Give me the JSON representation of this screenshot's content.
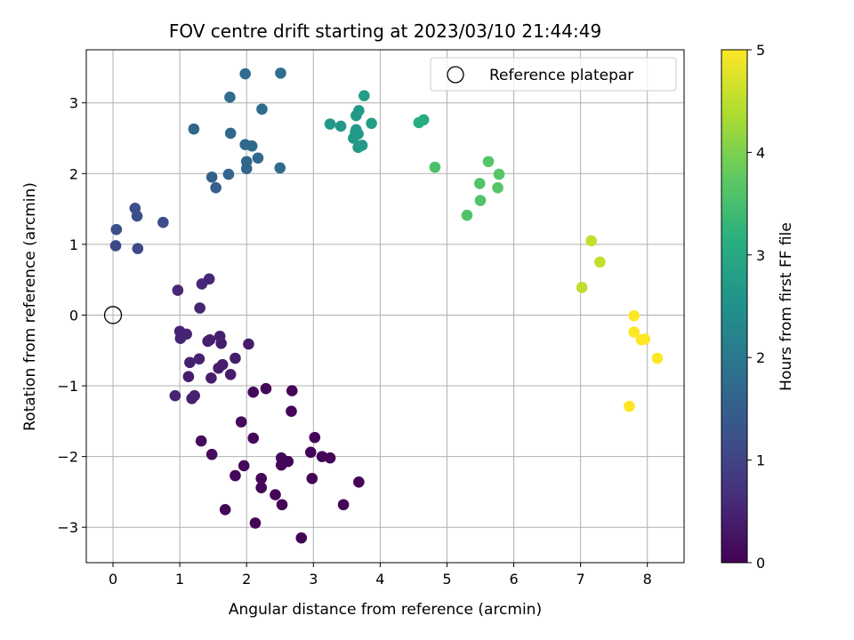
{
  "chart_data": {
    "type": "scatter",
    "title": "FOV centre drift starting at 2023/03/10 21:44:49",
    "xlabel": "Angular distance from reference (arcmin)",
    "ylabel": "Rotation from reference (arcmin)",
    "xlim": [
      -0.4,
      8.55
    ],
    "ylim": [
      -3.5,
      3.75
    ],
    "xticks": [
      0,
      1,
      2,
      3,
      4,
      5,
      6,
      7,
      8
    ],
    "yticks": [
      -3,
      -2,
      -1,
      0,
      1,
      2,
      3
    ],
    "grid": true,
    "legend": {
      "label": "Reference platepar",
      "position": "top-right"
    },
    "reference_point": {
      "x": 0,
      "y": 0
    },
    "colorbar": {
      "label": "Hours from first FF file",
      "colormap": "viridis",
      "range": [
        0,
        5
      ],
      "ticks": [
        0,
        1,
        2,
        3,
        4,
        5
      ]
    },
    "points": [
      [
        2.82,
        -3.15,
        0.05
      ],
      [
        2.13,
        -2.94,
        0.05
      ],
      [
        1.68,
        -2.75,
        0.07
      ],
      [
        2.53,
        -2.68,
        0.06
      ],
      [
        3.45,
        -2.68,
        0.05
      ],
      [
        2.43,
        -2.54,
        0.06
      ],
      [
        2.22,
        -2.44,
        0.07
      ],
      [
        2.22,
        -2.31,
        0.08
      ],
      [
        3.68,
        -2.36,
        0.06
      ],
      [
        2.98,
        -2.31,
        0.05
      ],
      [
        1.83,
        -2.27,
        0.1
      ],
      [
        1.96,
        -2.13,
        0.12
      ],
      [
        2.52,
        -2.12,
        0.07
      ],
      [
        2.62,
        -2.07,
        0.07
      ],
      [
        2.52,
        -2.02,
        0.08
      ],
      [
        3.13,
        -2.0,
        0.06
      ],
      [
        3.25,
        -2.02,
        0.07
      ],
      [
        2.96,
        -1.94,
        0.06
      ],
      [
        1.48,
        -1.97,
        0.15
      ],
      [
        1.32,
        -1.78,
        0.15
      ],
      [
        2.1,
        -1.74,
        0.1
      ],
      [
        3.02,
        -1.73,
        0.06
      ],
      [
        1.92,
        -1.51,
        0.14
      ],
      [
        2.67,
        -1.36,
        0.07
      ],
      [
        2.1,
        -1.09,
        0.12
      ],
      [
        2.29,
        -1.04,
        0.1
      ],
      [
        2.68,
        -1.07,
        0.06
      ],
      [
        0.93,
        -1.14,
        0.5
      ],
      [
        1.18,
        -1.18,
        0.45
      ],
      [
        1.22,
        -1.14,
        0.45
      ],
      [
        1.47,
        -0.89,
        0.4
      ],
      [
        1.13,
        -0.87,
        0.4
      ],
      [
        1.76,
        -0.84,
        0.38
      ],
      [
        1.64,
        -0.7,
        0.4
      ],
      [
        1.58,
        -0.75,
        0.4
      ],
      [
        1.15,
        -0.67,
        0.45
      ],
      [
        1.29,
        -0.62,
        0.45
      ],
      [
        1.83,
        -0.61,
        0.4
      ],
      [
        1.42,
        -0.37,
        0.4
      ],
      [
        1.45,
        -0.35,
        0.42
      ],
      [
        1.62,
        -0.4,
        0.4
      ],
      [
        1.6,
        -0.3,
        0.42
      ],
      [
        2.03,
        -0.41,
        0.4
      ],
      [
        1.01,
        -0.33,
        0.5
      ],
      [
        1.0,
        -0.23,
        0.5
      ],
      [
        1.1,
        -0.27,
        0.48
      ],
      [
        1.3,
        0.1,
        0.5
      ],
      [
        0.97,
        0.35,
        0.55
      ],
      [
        1.33,
        0.44,
        0.55
      ],
      [
        1.44,
        0.51,
        0.55
      ],
      [
        0.04,
        0.98,
        1.1
      ],
      [
        0.37,
        0.94,
        1.1
      ],
      [
        0.05,
        1.21,
        1.2
      ],
      [
        0.36,
        1.4,
        1.2
      ],
      [
        0.33,
        1.51,
        1.2
      ],
      [
        0.75,
        1.31,
        1.2
      ],
      [
        1.54,
        1.8,
        1.5
      ],
      [
        1.48,
        1.95,
        1.55
      ],
      [
        1.73,
        1.99,
        1.6
      ],
      [
        2.0,
        2.07,
        1.65
      ],
      [
        2.0,
        2.17,
        1.65
      ],
      [
        2.5,
        2.08,
        1.7
      ],
      [
        1.98,
        2.41,
        1.7
      ],
      [
        2.08,
        2.39,
        1.7
      ],
      [
        2.17,
        2.22,
        1.7
      ],
      [
        1.76,
        2.57,
        1.7
      ],
      [
        1.21,
        2.63,
        1.65
      ],
      [
        2.23,
        2.91,
        1.75
      ],
      [
        1.75,
        3.08,
        1.75
      ],
      [
        1.98,
        3.41,
        1.75
      ],
      [
        2.51,
        3.42,
        1.8
      ],
      [
        3.25,
        2.7,
        2.65
      ],
      [
        3.41,
        2.67,
        2.65
      ],
      [
        3.6,
        2.5,
        2.65
      ],
      [
        3.64,
        2.62,
        2.65
      ],
      [
        3.67,
        2.37,
        2.65
      ],
      [
        3.73,
        2.4,
        2.7
      ],
      [
        3.63,
        2.59,
        2.7
      ],
      [
        3.67,
        2.56,
        2.7
      ],
      [
        3.64,
        2.82,
        2.7
      ],
      [
        3.68,
        2.89,
        2.7
      ],
      [
        3.87,
        2.71,
        2.75
      ],
      [
        3.76,
        3.1,
        2.75
      ],
      [
        4.58,
        2.72,
        3.05
      ],
      [
        4.65,
        2.76,
        3.05
      ],
      [
        4.82,
        2.09,
        3.55
      ],
      [
        5.3,
        1.41,
        3.6
      ],
      [
        5.5,
        1.62,
        3.6
      ],
      [
        5.49,
        1.86,
        3.6
      ],
      [
        5.62,
        2.17,
        3.65
      ],
      [
        5.76,
        1.8,
        3.65
      ],
      [
        5.78,
        1.99,
        3.65
      ],
      [
        7.02,
        0.39,
        4.5
      ],
      [
        7.16,
        1.05,
        4.55
      ],
      [
        7.29,
        0.75,
        4.55
      ],
      [
        7.73,
        -1.29,
        5.0
      ],
      [
        7.8,
        -0.24,
        5.0
      ],
      [
        7.8,
        -0.01,
        5.0
      ],
      [
        7.91,
        -0.35,
        5.0
      ],
      [
        7.96,
        -0.34,
        5.0
      ],
      [
        8.15,
        -0.61,
        5.0
      ]
    ]
  }
}
